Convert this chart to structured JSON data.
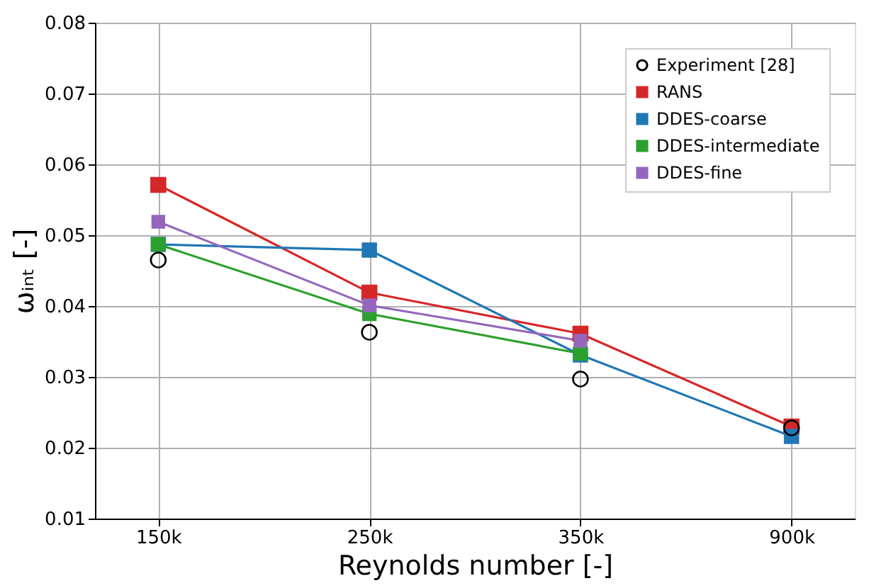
{
  "chart_data": {
    "type": "line",
    "xlabel": "Reynolds number [-]",
    "ylabel": "ωᵢₙₜ [-]",
    "categories": [
      "150k",
      "250k",
      "350k",
      "900k"
    ],
    "ylim": [
      0.01,
      0.08
    ],
    "yticks": [
      {
        "value": 0.01,
        "label": "0.01"
      },
      {
        "value": 0.02,
        "label": "0.02"
      },
      {
        "value": 0.03,
        "label": "0.03"
      },
      {
        "value": 0.04,
        "label": "0.04"
      },
      {
        "value": 0.05,
        "label": "0.05"
      },
      {
        "value": 0.06,
        "label": "0.06"
      },
      {
        "value": 0.07,
        "label": "0.07"
      },
      {
        "value": 0.08,
        "label": "0.08"
      }
    ],
    "grid": true,
    "legend": "top right",
    "series": [
      {
        "name": "Experiment [28]",
        "type": "scatter",
        "marker": "circle",
        "color": "#000000",
        "values": [
          0.0465,
          0.0363,
          0.0297,
          0.0228
        ]
      },
      {
        "name": "RANS",
        "type": "line",
        "marker": "square",
        "color": "#d62728",
        "values": [
          0.0571,
          0.0419,
          0.0361,
          0.023
        ]
      },
      {
        "name": "DDES-coarse",
        "type": "line",
        "marker": "square",
        "color": "#1f77b4",
        "values": [
          0.0487,
          0.0479,
          0.0331,
          0.0216
        ]
      },
      {
        "name": "DDES-intermediate",
        "type": "line",
        "marker": "square",
        "color": "#2ca02c",
        "values": [
          0.0487,
          0.0389,
          0.0333,
          null
        ]
      },
      {
        "name": "DDES-fine",
        "type": "line",
        "marker": "square",
        "color": "#9467bd",
        "values": [
          0.0519,
          0.0401,
          0.0351,
          null
        ]
      }
    ]
  }
}
